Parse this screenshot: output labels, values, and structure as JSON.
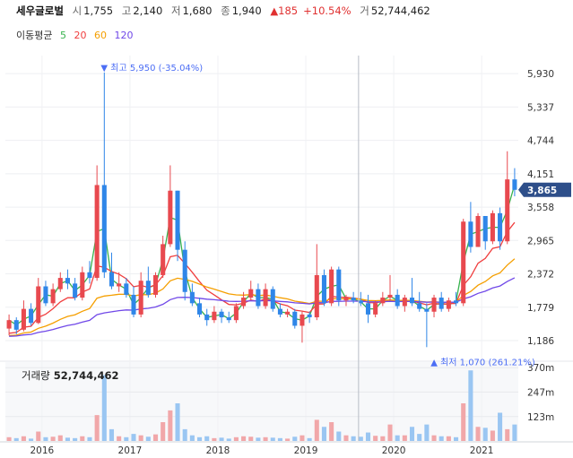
{
  "header": {
    "stock_name": "세우글로벌",
    "open_label": "시",
    "open": "1,755",
    "high_label": "고",
    "high": "2,140",
    "low_label": "저",
    "low": "1,680",
    "close_label": "종",
    "close": "1,940",
    "change_arrow": "▲",
    "change": "185",
    "change_pct": "+10.54%",
    "volume_label": "거",
    "volume": "52,744,462"
  },
  "moving_average": {
    "label": "이동평균",
    "periods": [
      {
        "period": "5",
        "color": "#37b24d"
      },
      {
        "period": "20",
        "color": "#f03e3e"
      },
      {
        "period": "60",
        "color": "#f59f00"
      },
      {
        "period": "120",
        "color": "#7048e8"
      }
    ]
  },
  "colors": {
    "up": "#e8494f",
    "down": "#2f86e8",
    "up_vol": "#f1a7a9",
    "down_vol": "#9ac6f2",
    "current_tag": "#2e4f8a"
  },
  "chart_data": {
    "type": "candlestick",
    "y_ticks": [
      5930,
      5337,
      4744,
      4151,
      3558,
      2965,
      2372,
      1779,
      1186
    ],
    "y_tick_labels": [
      "5,930",
      "5,337",
      "4,744",
      "4,151",
      "3,558",
      "2,965",
      "2,372",
      "1,779",
      "1,186"
    ],
    "ylim": [
      900,
      6250
    ],
    "x_labels": [
      "2016",
      "2017",
      "2018",
      "2019",
      "2020",
      "2021"
    ],
    "x_label_months": [
      5,
      17,
      29,
      41,
      53,
      65
    ],
    "month_range": [
      0,
      70
    ],
    "annotations": {
      "high": {
        "text": "▼ 최고 5,950 (-35.04%)",
        "value": 5950,
        "month": 12.9
      },
      "low": {
        "text": "▲ 최저 1,070 (261.21%)",
        "value": 1070,
        "month": 58.4
      },
      "current": {
        "text": "3,865",
        "value": 3865
      }
    },
    "crosshair_month": 48.2,
    "candles": [
      {
        "o": 1400,
        "h": 1650,
        "l": 1280,
        "c": 1550
      },
      {
        "o": 1550,
        "h": 1600,
        "l": 1300,
        "c": 1380
      },
      {
        "o": 1380,
        "h": 1900,
        "l": 1350,
        "c": 1750
      },
      {
        "o": 1750,
        "h": 1850,
        "l": 1450,
        "c": 1500
      },
      {
        "o": 1500,
        "h": 2300,
        "l": 1480,
        "c": 2150
      },
      {
        "o": 2150,
        "h": 2250,
        "l": 1800,
        "c": 1850
      },
      {
        "o": 1850,
        "h": 2200,
        "l": 1800,
        "c": 2100
      },
      {
        "o": 2100,
        "h": 2400,
        "l": 2050,
        "c": 2300
      },
      {
        "o": 2300,
        "h": 2450,
        "l": 2100,
        "c": 2200
      },
      {
        "o": 2200,
        "h": 2300,
        "l": 1900,
        "c": 1950
      },
      {
        "o": 1950,
        "h": 2500,
        "l": 1900,
        "c": 2400
      },
      {
        "o": 2400,
        "h": 2600,
        "l": 2200,
        "c": 2300
      },
      {
        "o": 2300,
        "h": 4300,
        "l": 2250,
        "c": 3950
      },
      {
        "o": 3950,
        "h": 5950,
        "l": 2300,
        "c": 2400
      },
      {
        "o": 2400,
        "h": 2750,
        "l": 2100,
        "c": 2150
      },
      {
        "o": 2150,
        "h": 2400,
        "l": 2050,
        "c": 2200
      },
      {
        "o": 2200,
        "h": 2300,
        "l": 1950,
        "c": 2000
      },
      {
        "o": 2000,
        "h": 2150,
        "l": 1600,
        "c": 1650
      },
      {
        "o": 1650,
        "h": 2400,
        "l": 1600,
        "c": 2250
      },
      {
        "o": 2250,
        "h": 2500,
        "l": 1950,
        "c": 2000
      },
      {
        "o": 2000,
        "h": 2400,
        "l": 1950,
        "c": 2350
      },
      {
        "o": 2350,
        "h": 3050,
        "l": 2300,
        "c": 2900
      },
      {
        "o": 2900,
        "h": 4300,
        "l": 2850,
        "c": 3850
      },
      {
        "o": 3850,
        "h": 3850,
        "l": 2600,
        "c": 2800
      },
      {
        "o": 2800,
        "h": 2950,
        "l": 1900,
        "c": 2050
      },
      {
        "o": 2050,
        "h": 2200,
        "l": 1800,
        "c": 1850
      },
      {
        "o": 1850,
        "h": 1950,
        "l": 1600,
        "c": 1650
      },
      {
        "o": 1650,
        "h": 1750,
        "l": 1450,
        "c": 1550
      },
      {
        "o": 1550,
        "h": 1800,
        "l": 1500,
        "c": 1700
      },
      {
        "o": 1700,
        "h": 1750,
        "l": 1500,
        "c": 1600
      },
      {
        "o": 1600,
        "h": 1700,
        "l": 1500,
        "c": 1550
      },
      {
        "o": 1550,
        "h": 1850,
        "l": 1500,
        "c": 1800
      },
      {
        "o": 1800,
        "h": 2050,
        "l": 1750,
        "c": 1950
      },
      {
        "o": 1950,
        "h": 2250,
        "l": 1900,
        "c": 2100
      },
      {
        "o": 2100,
        "h": 2200,
        "l": 1750,
        "c": 1800
      },
      {
        "o": 1800,
        "h": 2200,
        "l": 1750,
        "c": 2100
      },
      {
        "o": 2100,
        "h": 2150,
        "l": 1700,
        "c": 1750
      },
      {
        "o": 1750,
        "h": 1850,
        "l": 1600,
        "c": 1650
      },
      {
        "o": 1650,
        "h": 1750,
        "l": 1600,
        "c": 1700
      },
      {
        "o": 1700,
        "h": 1750,
        "l": 1400,
        "c": 1450
      },
      {
        "o": 1450,
        "h": 1700,
        "l": 1150,
        "c": 1650
      },
      {
        "o": 1650,
        "h": 1700,
        "l": 1500,
        "c": 1600
      },
      {
        "o": 1600,
        "h": 2900,
        "l": 1550,
        "c": 2350
      },
      {
        "o": 2350,
        "h": 2450,
        "l": 1800,
        "c": 1850
      },
      {
        "o": 1850,
        "h": 2500,
        "l": 1800,
        "c": 2450
      },
      {
        "o": 2450,
        "h": 2500,
        "l": 1800,
        "c": 1900
      },
      {
        "o": 1900,
        "h": 2000,
        "l": 1800,
        "c": 1950
      },
      {
        "o": 1950,
        "h": 2050,
        "l": 1850,
        "c": 1900
      },
      {
        "o": 1900,
        "h": 2050,
        "l": 1800,
        "c": 1850
      },
      {
        "o": 1850,
        "h": 2000,
        "l": 1500,
        "c": 1650
      },
      {
        "o": 1650,
        "h": 1900,
        "l": 1600,
        "c": 1850
      },
      {
        "o": 1850,
        "h": 2050,
        "l": 1800,
        "c": 1950
      },
      {
        "o": 1950,
        "h": 2350,
        "l": 1900,
        "c": 2000
      },
      {
        "o": 2000,
        "h": 2100,
        "l": 1750,
        "c": 1800
      },
      {
        "o": 1800,
        "h": 2000,
        "l": 1700,
        "c": 1950
      },
      {
        "o": 1950,
        "h": 2300,
        "l": 1800,
        "c": 1850
      },
      {
        "o": 1850,
        "h": 2050,
        "l": 1700,
        "c": 1750
      },
      {
        "o": 1750,
        "h": 1850,
        "l": 1070,
        "c": 1700
      },
      {
        "o": 1700,
        "h": 2000,
        "l": 1600,
        "c": 1950
      },
      {
        "o": 1950,
        "h": 2050,
        "l": 1700,
        "c": 1750
      },
      {
        "o": 1750,
        "h": 1950,
        "l": 1700,
        "c": 1900
      },
      {
        "o": 1900,
        "h": 2050,
        "l": 1800,
        "c": 1850
      },
      {
        "o": 1850,
        "h": 3350,
        "l": 1800,
        "c": 3300
      },
      {
        "o": 3300,
        "h": 3650,
        "l": 2750,
        "c": 2850
      },
      {
        "o": 2850,
        "h": 3450,
        "l": 2850,
        "c": 3400
      },
      {
        "o": 3400,
        "h": 3400,
        "l": 2800,
        "c": 2950
      },
      {
        "o": 2950,
        "h": 3500,
        "l": 2900,
        "c": 3450
      },
      {
        "o": 3450,
        "h": 3550,
        "l": 2800,
        "c": 2950
      },
      {
        "o": 2950,
        "h": 4550,
        "l": 2900,
        "c": 4050
      },
      {
        "o": 4050,
        "h": 4250,
        "l": 3750,
        "c": 3865
      }
    ],
    "volumes": [
      8,
      6,
      10,
      5,
      20,
      8,
      9,
      12,
      7,
      6,
      10,
      8,
      55,
      140,
      25,
      10,
      8,
      15,
      12,
      9,
      14,
      40,
      65,
      80,
      25,
      12,
      8,
      10,
      6,
      7,
      5,
      8,
      10,
      9,
      7,
      8,
      7,
      6,
      5,
      9,
      12,
      6,
      45,
      30,
      40,
      20,
      12,
      10,
      9,
      18,
      11,
      10,
      35,
      12,
      12,
      30,
      15,
      35,
      12,
      10,
      10,
      8,
      80,
      150,
      30,
      28,
      22,
      60,
      25,
      35
    ]
  }
}
